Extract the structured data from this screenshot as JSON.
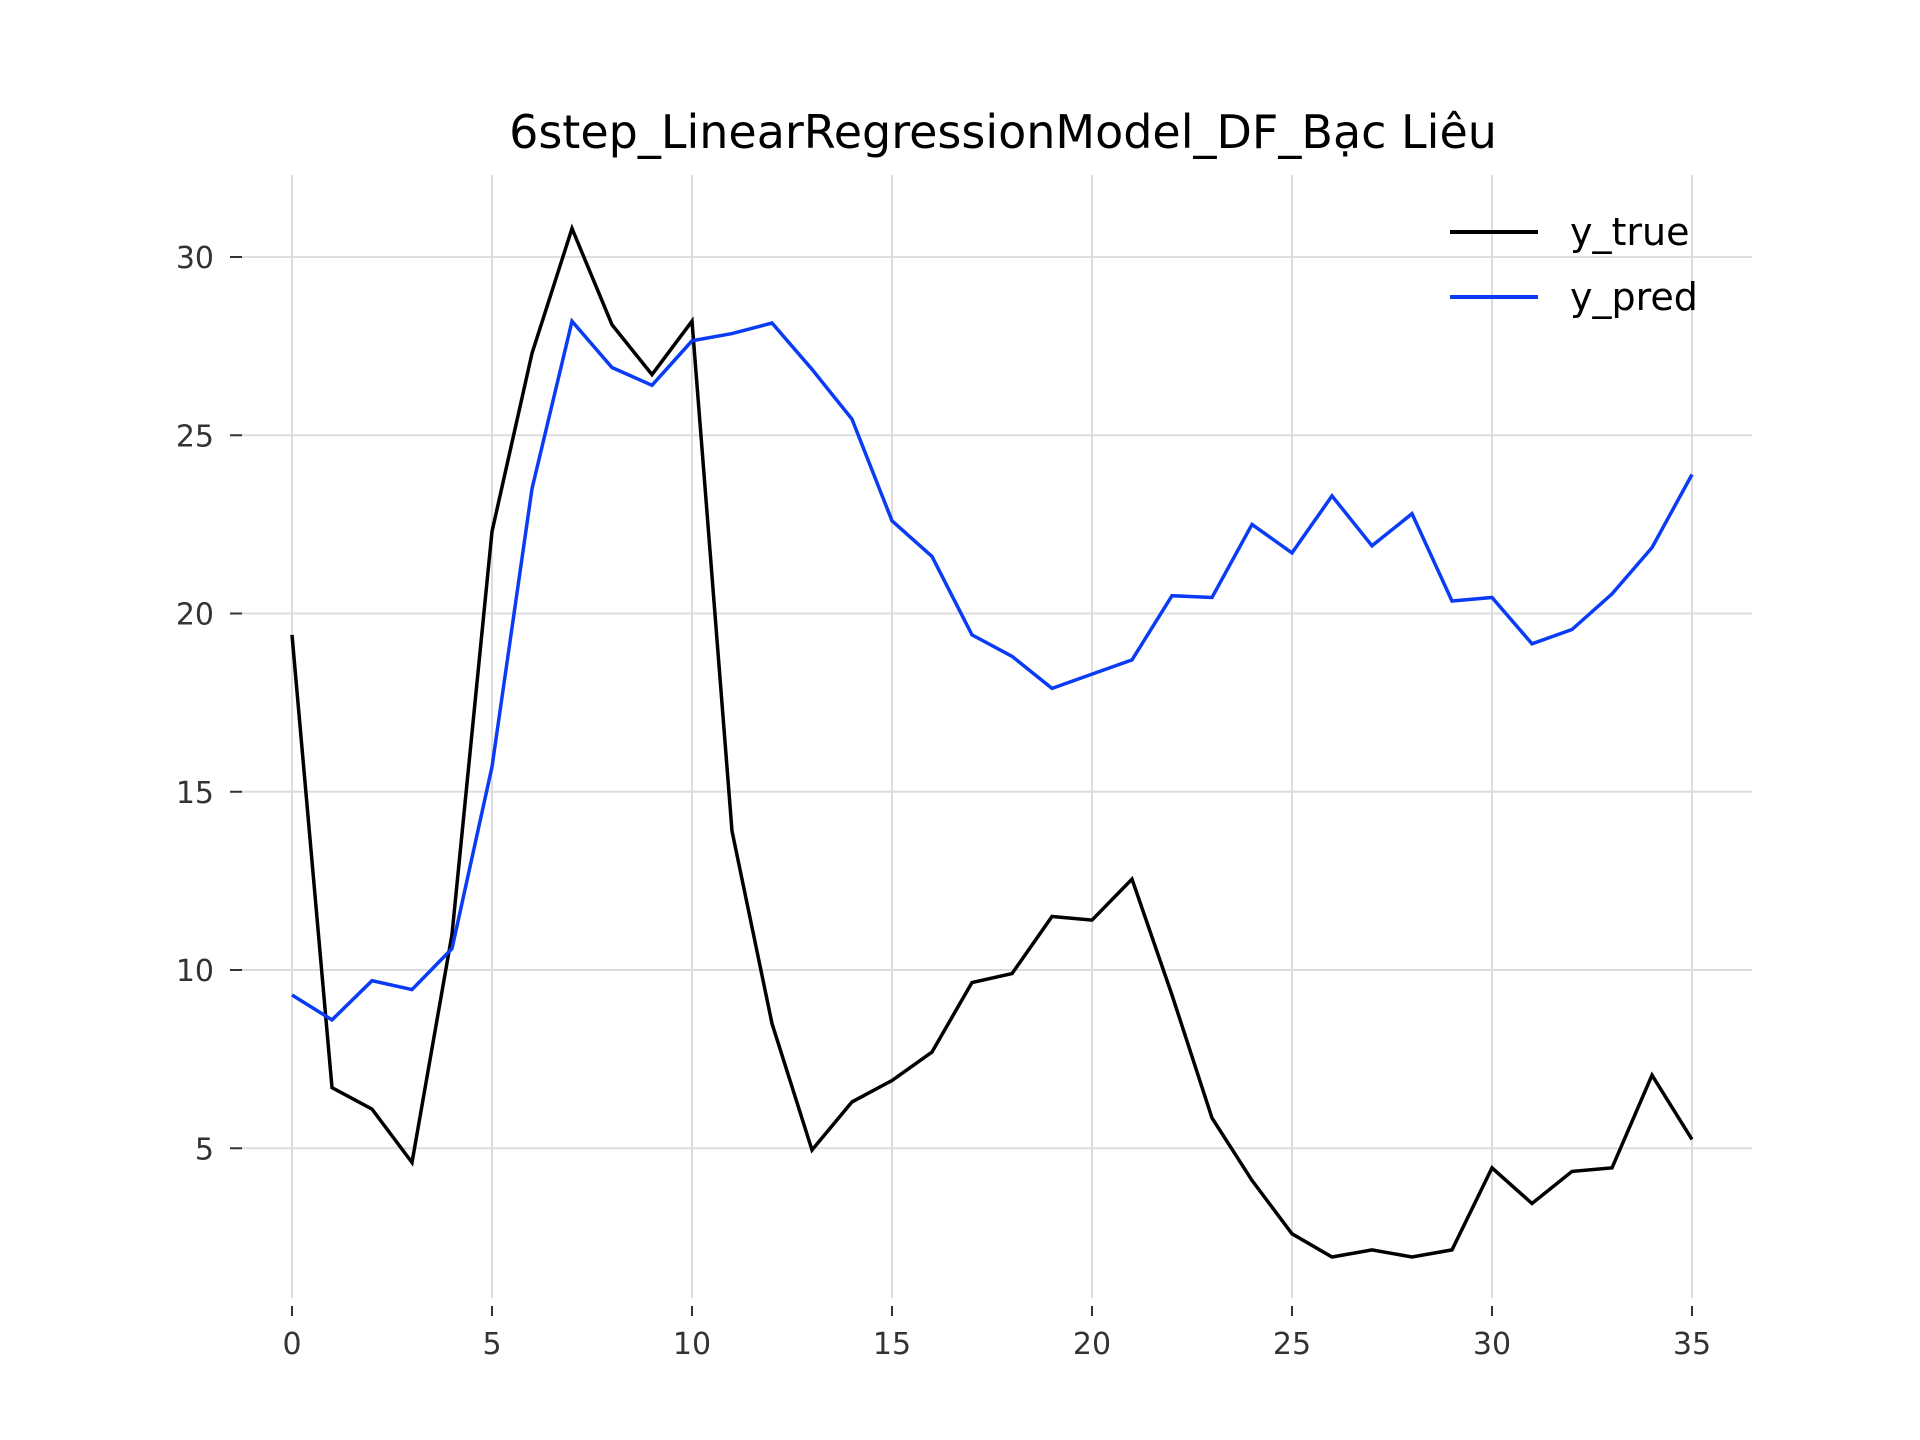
{
  "chart_data": {
    "type": "line",
    "title": "6step_LinearRegressionModel_DF_Bạc Liêu",
    "xlabel": "",
    "ylabel": "",
    "xlim": [
      -1.5,
      36.5
    ],
    "ylim": [
      0.8,
      32.3
    ],
    "xticks": [
      0,
      5,
      10,
      15,
      20,
      25,
      30,
      35
    ],
    "yticks": [
      5,
      10,
      15,
      20,
      25,
      30
    ],
    "grid": true,
    "legend_position": "top-right",
    "x": [
      0,
      1,
      2,
      3,
      4,
      5,
      6,
      7,
      8,
      9,
      10,
      11,
      12,
      13,
      14,
      15,
      16,
      17,
      18,
      19,
      20,
      21,
      22,
      23,
      24,
      25,
      26,
      27,
      28,
      29,
      30,
      31,
      32,
      33,
      34,
      35
    ],
    "series": [
      {
        "name": "y_true",
        "color": "#000000",
        "values": [
          19.4,
          6.7,
          6.1,
          4.6,
          11.0,
          22.3,
          27.3,
          30.8,
          28.1,
          26.7,
          28.2,
          13.9,
          8.5,
          4.95,
          6.3,
          6.9,
          7.7,
          9.65,
          9.9,
          11.5,
          11.4,
          12.55,
          9.3,
          5.85,
          4.1,
          2.6,
          1.95,
          2.15,
          1.95,
          2.15,
          4.45,
          3.45,
          4.35,
          4.45,
          7.05,
          5.25
        ]
      },
      {
        "name": "y_pred",
        "color": "#0a3cf5",
        "values": [
          9.3,
          8.6,
          9.7,
          9.45,
          10.6,
          15.7,
          23.5,
          28.2,
          26.9,
          26.4,
          27.65,
          27.85,
          28.15,
          26.85,
          25.45,
          22.6,
          21.6,
          19.4,
          18.8,
          17.9,
          18.3,
          18.7,
          20.5,
          20.45,
          22.5,
          21.7,
          23.3,
          21.9,
          22.8,
          20.35,
          20.45,
          19.15,
          19.55,
          20.55,
          21.85,
          23.9
        ]
      }
    ]
  }
}
